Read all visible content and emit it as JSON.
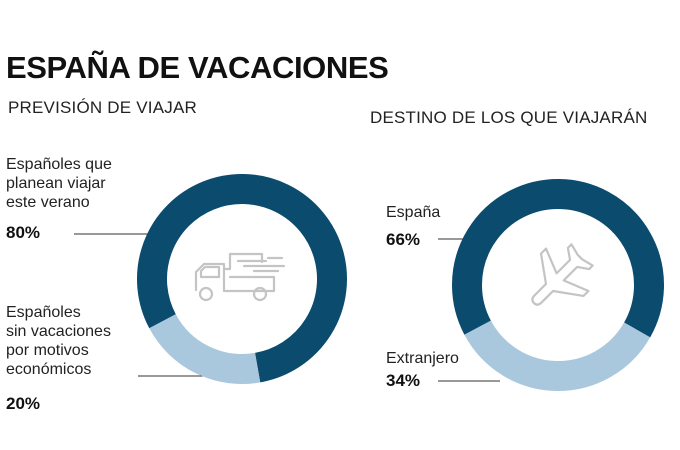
{
  "title": "ESPAÑA DE VACACIONES",
  "colors": {
    "dark": "#0b4b6e",
    "light": "#a9c8dd",
    "leader": "#333333",
    "icon": "#c4c4c4"
  },
  "chart_data": [
    {
      "type": "pie",
      "title": "PREVISIÓN DE VIAJAR",
      "icon": "truck-icon",
      "slices": [
        {
          "label": "Españoles que\nplanean viajar\neste verano",
          "value": 80,
          "value_label": "80%",
          "color": "#0b4b6e"
        },
        {
          "label": "Españoles\nsin vacaciones\npor motivos\neconómicos",
          "value": 20,
          "value_label": "20%",
          "color": "#a9c8dd"
        }
      ]
    },
    {
      "type": "pie",
      "title": "DESTINO DE LOS QUE VIAJARÁN",
      "icon": "airplane-icon",
      "slices": [
        {
          "label": "España",
          "value": 66,
          "value_label": "66%",
          "color": "#0b4b6e"
        },
        {
          "label": "Extranjero",
          "value": 34,
          "value_label": "34%",
          "color": "#a9c8dd"
        }
      ]
    }
  ]
}
